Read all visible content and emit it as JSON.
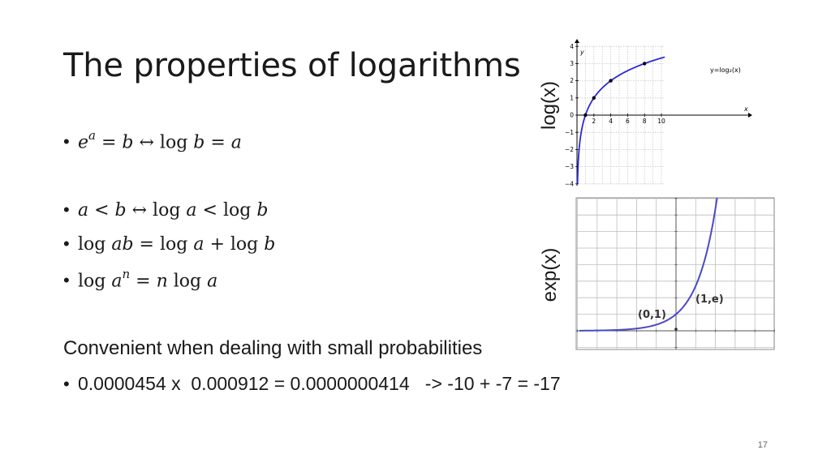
{
  "slide": {
    "title": "The properties of logarithms",
    "bullets": [
      {
        "bullet": "•",
        "parts": [
          {
            "t": "e",
            "i": true
          },
          {
            "t": "a",
            "sup": true
          },
          {
            "t": " = "
          },
          {
            "t": "b",
            "i": true
          },
          {
            "t": " ↔ log "
          },
          {
            "t": "b",
            "i": true
          },
          {
            "t": " = "
          },
          {
            "t": "a",
            "i": true
          }
        ]
      },
      {
        "bullet": "•",
        "parts": [
          {
            "t": "a",
            "i": true
          },
          {
            "t": " < "
          },
          {
            "t": "b",
            "i": true
          },
          {
            "t": " ↔ log "
          },
          {
            "t": "a",
            "i": true
          },
          {
            "t": " < log "
          },
          {
            "t": "b",
            "i": true
          }
        ]
      },
      {
        "bullet": "•",
        "parts": [
          {
            "t": "log "
          },
          {
            "t": "ab",
            "i": true
          },
          {
            "t": " = log "
          },
          {
            "t": "a",
            "i": true
          },
          {
            "t": " + log "
          },
          {
            "t": "b",
            "i": true
          }
        ]
      },
      {
        "bullet": "•",
        "parts": [
          {
            "t": "log "
          },
          {
            "t": "a",
            "i": true
          },
          {
            "t": "n",
            "sup": true
          },
          {
            "t": " = "
          },
          {
            "t": "n",
            "i": true
          },
          {
            "t": " log "
          },
          {
            "t": "a",
            "i": true
          }
        ]
      }
    ],
    "convenient_text": "Convenient when dealing with small probabilities",
    "example_bullet": "•",
    "example_text": "0.0000454 x  0.000912 = 0.0000000414   -> -10 + -7 = -17",
    "page_number": "17",
    "log_label": "log(x)",
    "exp_label": "exp(x)"
  },
  "log_plot": {
    "y_axis_label": "y",
    "x_axis_label": "x",
    "curve_label": "y=log₂(x)",
    "x_ticks": [
      "2",
      "4",
      "6",
      "8",
      "10"
    ],
    "y_ticks": [
      "4",
      "3",
      "2",
      "1",
      "0",
      "−1",
      "−2",
      "−3",
      "−4"
    ],
    "points": [
      [
        1,
        0
      ],
      [
        2,
        1
      ],
      [
        4,
        2
      ],
      [
        8,
        3
      ]
    ],
    "curve_color": "#2b2bd6"
  },
  "exp_plot": {
    "label_origin": "(0,1)",
    "label_one": "(1,e)",
    "curve_color": "#4a4ac8"
  }
}
